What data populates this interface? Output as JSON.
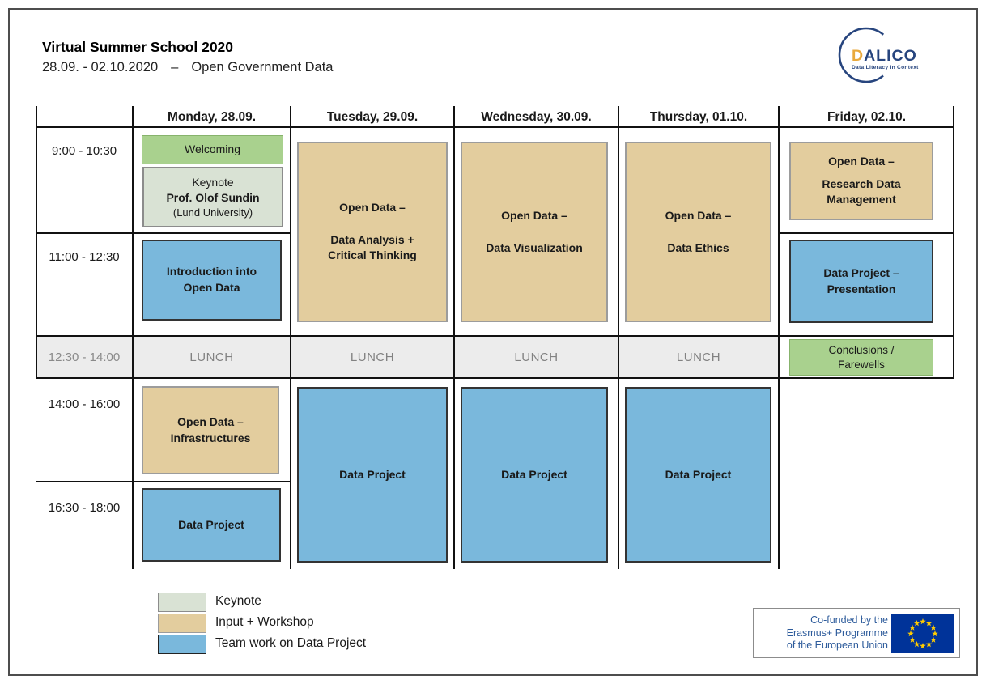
{
  "header": {
    "title": "Virtual Summer School 2020",
    "dates": "28.09. - 02.10.2020",
    "dash": "–",
    "topic": "Open Government Data"
  },
  "logo": {
    "d": "D",
    "rest": "ALICO",
    "tagline": "Data Literacy in Context",
    "gold": "#e9a93c",
    "blue": "#27457e"
  },
  "schedule": {
    "days": [
      "Monday, 28.09.",
      "Tuesday, 29.09.",
      "Wednesday, 30.09.",
      "Thursday, 01.10.",
      "Friday, 02.10."
    ],
    "times": [
      "9:00 - 10:30",
      "11:00 - 12:30",
      "12:30 - 14:00",
      "14:00 - 16:00",
      "16:30 - 18:00"
    ],
    "lunch_label": "LUNCH",
    "blocks": [
      {
        "day": "Monday",
        "time": "9:00 - 10:30",
        "category": "welcome",
        "lines": [
          "Welcoming"
        ]
      },
      {
        "day": "Monday",
        "time": "9:00 - 10:30",
        "category": "keynote",
        "title": "Keynote",
        "speaker": "Prof. Olof Sundin",
        "affiliation": "(Lund University)"
      },
      {
        "day": "Monday",
        "time": "11:00 - 12:30",
        "category": "teamwork",
        "lines": [
          "Introduction into",
          "Open Data"
        ]
      },
      {
        "day": "Tuesday",
        "time": "9:00 - 12:30",
        "category": "workshop",
        "lines": [
          "Open Data –",
          "",
          "Data Analysis +",
          "Critical Thinking"
        ]
      },
      {
        "day": "Wednesday",
        "time": "9:00 - 12:30",
        "category": "workshop",
        "lines": [
          "Open Data –",
          "",
          "Data Visualization"
        ]
      },
      {
        "day": "Thursday",
        "time": "9:00 - 12:30",
        "category": "workshop",
        "lines": [
          "Open Data –",
          "",
          "Data Ethics"
        ]
      },
      {
        "day": "Friday",
        "time": "9:00 - 10:30",
        "category": "workshop",
        "lines": [
          "Open Data –",
          "Research Data",
          "Management"
        ]
      },
      {
        "day": "Friday",
        "time": "11:00 - 12:30",
        "category": "teamwork",
        "lines": [
          "Data Project –",
          "Presentation"
        ]
      },
      {
        "day": "Friday",
        "time": "12:30 - 14:00",
        "category": "welcome",
        "lines": [
          "Conclusions /",
          "Farewells"
        ]
      },
      {
        "day": "Monday",
        "time": "14:00 - 16:00",
        "category": "workshop",
        "lines": [
          "Open Data –",
          "Infrastructures"
        ]
      },
      {
        "day": "Monday",
        "time": "16:30 - 18:00",
        "category": "teamwork",
        "lines": [
          "Data Project"
        ]
      },
      {
        "day": "Tuesday",
        "time": "14:00 - 18:00",
        "category": "teamwork",
        "lines": [
          "Data Project"
        ]
      },
      {
        "day": "Wednesday",
        "time": "14:00 - 18:00",
        "category": "teamwork",
        "lines": [
          "Data Project"
        ]
      },
      {
        "day": "Thursday",
        "time": "14:00 - 18:00",
        "category": "teamwork",
        "lines": [
          "Data Project"
        ]
      }
    ]
  },
  "legend": {
    "items": [
      {
        "label": "Keynote",
        "color": "#d9e2d4"
      },
      {
        "label": "Input + Workshop",
        "color": "#e3cd9e"
      },
      {
        "label": "Team work on Data Project",
        "color": "#7ab8dc"
      }
    ]
  },
  "eu": {
    "lines": [
      "Co-funded by the",
      "Erasmus+ Programme",
      "of the European Union"
    ],
    "flag_blue": "#003399",
    "star_yellow": "#FFCC00"
  },
  "colors": {
    "welcome_green": "#a9d18e",
    "keynote_sage": "#d9e2d4",
    "workshop_tan": "#e3cd9e",
    "teamwork_blue": "#7ab8dc",
    "lunch_gray": "#ececec",
    "grid_line": "#111111"
  }
}
